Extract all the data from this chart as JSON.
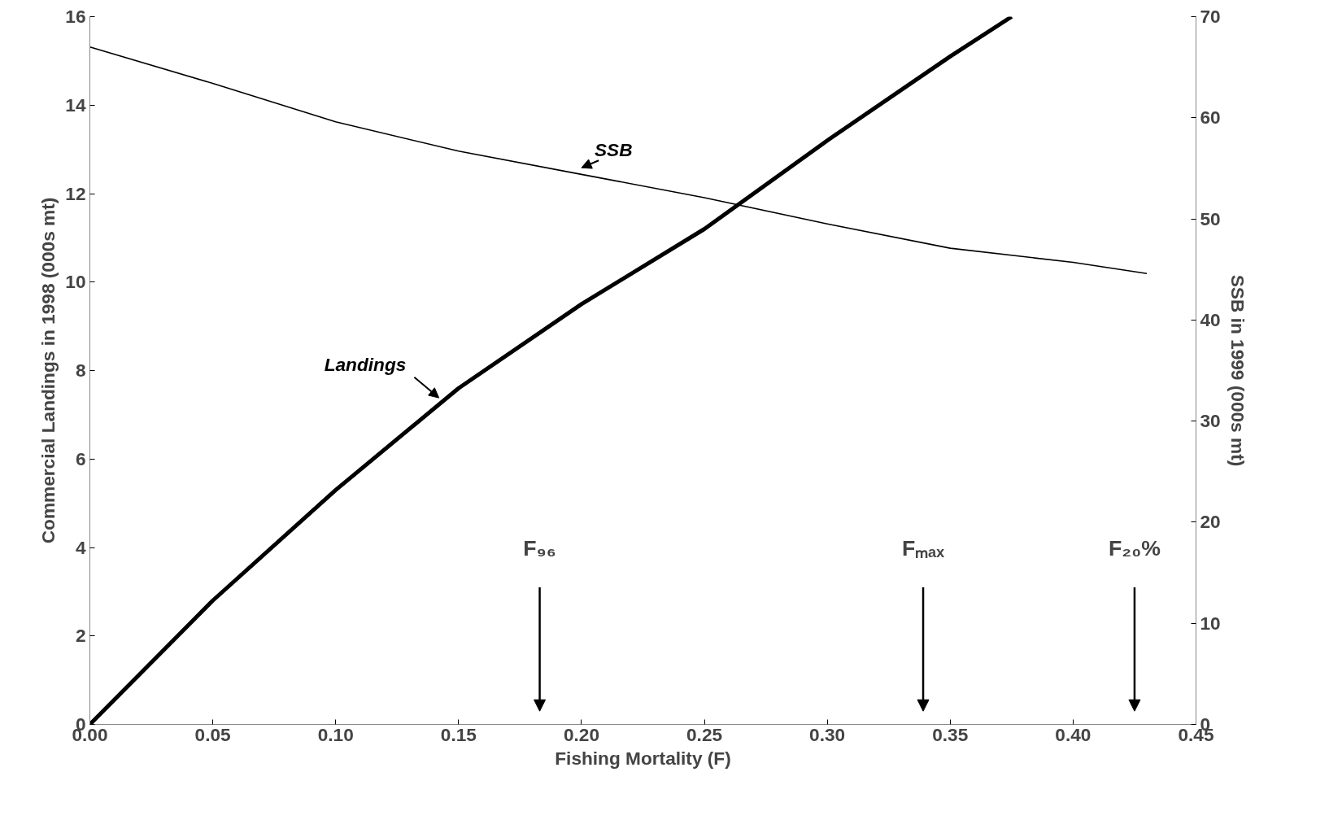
{
  "chart_data": {
    "type": "line",
    "xlabel": "Fishing Mortality (F)",
    "ylabel": "Commercial Landings in 1998 (000s mt)",
    "y2label": "SSB in 1999 (000s mt)",
    "series": [
      {
        "name": "Landings",
        "color": "#000000",
        "x": [
          0,
          0.05,
          0.1,
          0.15,
          0.2,
          0.25,
          0.3,
          0.35,
          0.375
        ],
        "values": [
          0,
          2.8,
          5.3,
          7.6,
          9.5,
          11.2,
          13.2,
          15.1,
          16.0
        ]
      },
      {
        "name": "SSB",
        "color": "#000000",
        "axis": "y2",
        "x": [
          0,
          0.05,
          0.1,
          0.15,
          0.2,
          0.25,
          0.3,
          0.35,
          0.4,
          0.43
        ],
        "values": [
          67.0,
          63.4,
          59.6,
          56.7,
          54.4,
          52.1,
          49.5,
          47.1,
          45.7,
          44.6
        ]
      }
    ],
    "xlim": [
      0,
      0.45
    ],
    "xticks": [
      {
        "value": 0,
        "label": "0.00"
      },
      {
        "value": 0.05,
        "label": "0.05"
      },
      {
        "value": 0.1,
        "label": "0.10"
      },
      {
        "value": 0.15,
        "label": "0.15"
      },
      {
        "value": 0.2,
        "label": "0.20"
      },
      {
        "value": 0.25,
        "label": "0.25"
      },
      {
        "value": 0.3,
        "label": "0.30"
      },
      {
        "value": 0.35,
        "label": "0.35"
      },
      {
        "value": 0.4,
        "label": "0.40"
      },
      {
        "value": 0.45,
        "label": "0.45"
      }
    ],
    "ylim": [
      0,
      16
    ],
    "yticks": [
      0,
      2,
      4,
      6,
      8,
      10,
      12,
      14,
      16
    ],
    "y2lim": [
      0,
      70
    ],
    "y2ticks": [
      0,
      10,
      20,
      30,
      40,
      50,
      60,
      70
    ],
    "annotations": [
      "F₉₆",
      "Fₘₐₓ",
      "F₂₀%"
    ],
    "grid": false,
    "legend": false,
    "marker": "none",
    "line_style": "solid"
  }
}
